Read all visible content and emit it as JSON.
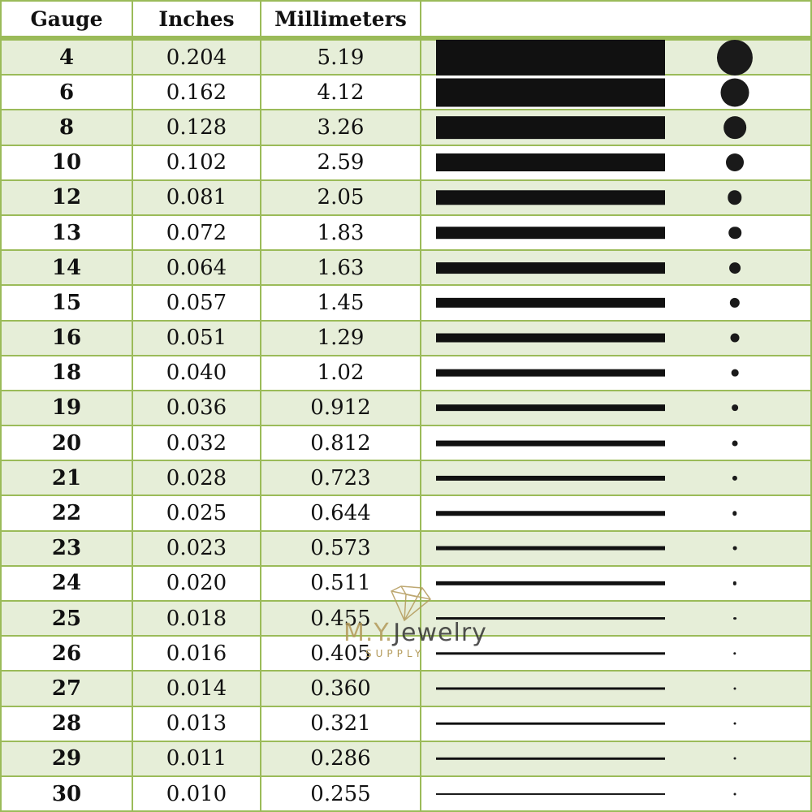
{
  "header": {
    "gauge": "Gauge",
    "inches": "Inches",
    "millimeters": "Millimeters",
    "visual": ""
  },
  "colors": {
    "border": "#9bbb59",
    "alt_row": "#e6eed8",
    "mark": "#111111"
  },
  "rows": [
    {
      "gauge": "4",
      "inches": "0.204",
      "mm": "5.19"
    },
    {
      "gauge": "6",
      "inches": "0.162",
      "mm": "4.12"
    },
    {
      "gauge": "8",
      "inches": "0.128",
      "mm": "3.26"
    },
    {
      "gauge": "10",
      "inches": "0.102",
      "mm": "2.59"
    },
    {
      "gauge": "12",
      "inches": "0.081",
      "mm": "2.05"
    },
    {
      "gauge": "13",
      "inches": "0.072",
      "mm": "1.83"
    },
    {
      "gauge": "14",
      "inches": "0.064",
      "mm": "1.63"
    },
    {
      "gauge": "15",
      "inches": "0.057",
      "mm": "1.45"
    },
    {
      "gauge": "16",
      "inches": "0.051",
      "mm": "1.29"
    },
    {
      "gauge": "18",
      "inches": "0.040",
      "mm": "1.02"
    },
    {
      "gauge": "19",
      "inches": "0.036",
      "mm": "0.912"
    },
    {
      "gauge": "20",
      "inches": "0.032",
      "mm": "0.812"
    },
    {
      "gauge": "21",
      "inches": "0.028",
      "mm": "0.723"
    },
    {
      "gauge": "22",
      "inches": "0.025",
      "mm": "0.644"
    },
    {
      "gauge": "23",
      "inches": "0.023",
      "mm": "0.573"
    },
    {
      "gauge": "24",
      "inches": "0.020",
      "mm": "0.511"
    },
    {
      "gauge": "25",
      "inches": "0.018",
      "mm": "0.455"
    },
    {
      "gauge": "26",
      "inches": "0.016",
      "mm": "0.405"
    },
    {
      "gauge": "27",
      "inches": "0.014",
      "mm": "0.360"
    },
    {
      "gauge": "28",
      "inches": "0.013",
      "mm": "0.321"
    },
    {
      "gauge": "29",
      "inches": "0.011",
      "mm": "0.286"
    },
    {
      "gauge": "30",
      "inches": "0.010",
      "mm": "0.255"
    }
  ],
  "watermark": {
    "brand_prefix": "M.Y.",
    "brand": "Jewelry",
    "tagline": "SUPPLY",
    "icon": "diamond-icon"
  }
}
